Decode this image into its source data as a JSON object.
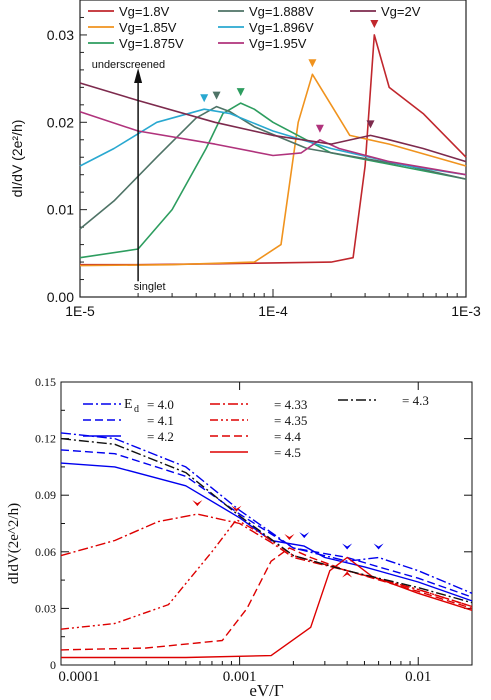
{
  "chart_data": [
    {
      "type": "line",
      "x_scale": "log",
      "xlim": [
        1e-05,
        0.001
      ],
      "ylim": [
        0,
        0.034
      ],
      "xticks": [
        "1E-5",
        "1E-4",
        "1E-3"
      ],
      "yticks": [
        "0.00",
        "0.01",
        "0.02",
        "0.03"
      ],
      "ylabel": "dI/dV (2e²/h)",
      "xlabel": "",
      "grid": false,
      "legend_position": "top",
      "annotations": {
        "underscreened": "underscreened",
        "singlet": "singlet"
      },
      "series": [
        {
          "name": "Vg=1.8V",
          "color": "#c0272d",
          "x": [
            1e-05,
            2e-05,
            5e-05,
            0.0001,
            0.0002,
            0.00026,
            0.0003,
            0.000335,
            0.0004,
            0.0006,
            0.001
          ],
          "y": [
            0.0037,
            0.0037,
            0.0038,
            0.0039,
            0.004,
            0.0045,
            0.015,
            0.03,
            0.024,
            0.021,
            0.016
          ]
        },
        {
          "name": "Vg=1.85V",
          "color": "#f0931e",
          "x": [
            1e-05,
            3e-05,
            8e-05,
            0.00011,
            0.000135,
            0.00016,
            0.0002,
            0.00025,
            0.0004,
            0.001
          ],
          "y": [
            0.0036,
            0.0037,
            0.004,
            0.006,
            0.02,
            0.0255,
            0.022,
            0.0185,
            0.0175,
            0.015
          ]
        },
        {
          "name": "Vg=1.875V",
          "color": "#2d9d5f",
          "x": [
            1e-05,
            2e-05,
            3e-05,
            4.5e-05,
            5.5e-05,
            6.8e-05,
            8e-05,
            0.0001,
            0.0002,
            0.001
          ],
          "y": [
            0.0045,
            0.0055,
            0.01,
            0.017,
            0.021,
            0.0222,
            0.0215,
            0.02,
            0.0165,
            0.0135
          ]
        },
        {
          "name": "Vg=1.888V",
          "color": "#4e7366",
          "x": [
            1e-05,
            1.5e-05,
            2.5e-05,
            4e-05,
            5.1e-05,
            6e-05,
            8e-05,
            0.00015,
            0.0005,
            0.001
          ],
          "y": [
            0.0078,
            0.011,
            0.016,
            0.0205,
            0.0218,
            0.0212,
            0.0195,
            0.017,
            0.015,
            0.0135
          ]
        },
        {
          "name": "Vg=1.896V",
          "color": "#29a8d0",
          "x": [
            1e-05,
            1.5e-05,
            2.5e-05,
            4.4e-05,
            6e-05,
            0.0001,
            0.0002,
            0.0005,
            0.001
          ],
          "y": [
            0.015,
            0.017,
            0.02,
            0.0215,
            0.021,
            0.019,
            0.017,
            0.015,
            0.014
          ]
        },
        {
          "name": "Vg=1.95V",
          "color": "#b0337c",
          "x": [
            1e-05,
            2e-05,
            5e-05,
            0.0001,
            0.00014,
            0.000175,
            0.00022,
            0.0004,
            0.001
          ],
          "y": [
            0.0212,
            0.019,
            0.0175,
            0.0162,
            0.0165,
            0.018,
            0.017,
            0.0155,
            0.014
          ]
        },
        {
          "name": "Vg=2V",
          "color": "#7d2a4d",
          "x": [
            1e-05,
            2e-05,
            5e-05,
            0.0001,
            0.0002,
            0.00032,
            0.0004,
            0.0006,
            0.001
          ],
          "y": [
            0.0245,
            0.0225,
            0.02,
            0.0185,
            0.0175,
            0.0185,
            0.018,
            0.017,
            0.0155
          ]
        }
      ],
      "markers": [
        {
          "x": 0.000335,
          "y": 0.03,
          "color": "#c0272d"
        },
        {
          "x": 0.00016,
          "y": 0.0255,
          "color": "#f0931e"
        },
        {
          "x": 6.8e-05,
          "y": 0.0222,
          "color": "#2d9d5f"
        },
        {
          "x": 5.1e-05,
          "y": 0.0218,
          "color": "#4e7366"
        },
        {
          "x": 4.4e-05,
          "y": 0.0215,
          "color": "#29a8d0"
        },
        {
          "x": 0.000175,
          "y": 0.018,
          "color": "#b0337c"
        },
        {
          "x": 0.00032,
          "y": 0.0185,
          "color": "#7d2a4d"
        }
      ]
    },
    {
      "type": "line",
      "x_scale": "log",
      "xlim": [
        0.0001,
        0.02
      ],
      "ylim": [
        0,
        0.15
      ],
      "xticks": [
        "0.0001",
        "0.001",
        "0.01"
      ],
      "yticks": [
        "0",
        "0.03",
        "0.06",
        "0.09",
        "0.12",
        "0.15"
      ],
      "xlabel": "eV/Γ",
      "ylabel": "dIdV(2e^2/h)",
      "grid": false,
      "legend_position": "top",
      "legend_prefix": "E",
      "legend_prefix_sub": "d",
      "series": [
        {
          "name": "4.0",
          "legend_label": "= 4.0",
          "color": "#0000ee",
          "dash": "10,3,2,3",
          "x": [
            0.0001,
            0.0002,
            0.0005,
            0.001,
            0.002,
            0.004,
            0.006,
            0.01,
            0.02
          ],
          "y": [
            0.123,
            0.12,
            0.105,
            0.082,
            0.062,
            0.055,
            0.057,
            0.05,
            0.038
          ]
        },
        {
          "name": "4.1",
          "legend_label": "= 4.1",
          "color": "#0000ee",
          "dash": "8,4",
          "x": [
            0.0001,
            0.0002,
            0.0005,
            0.001,
            0.002,
            0.004,
            0.006,
            0.01,
            0.02
          ],
          "y": [
            0.114,
            0.112,
            0.1,
            0.08,
            0.062,
            0.057,
            0.052,
            0.046,
            0.036
          ]
        },
        {
          "name": "4.2",
          "legend_label": "= 4.2",
          "color": "#0000ee",
          "dash": "",
          "x": [
            0.0001,
            0.0002,
            0.0005,
            0.001,
            0.0015,
            0.0023,
            0.003,
            0.005,
            0.01,
            0.02
          ],
          "y": [
            0.107,
            0.105,
            0.095,
            0.078,
            0.066,
            0.063,
            0.057,
            0.052,
            0.044,
            0.034
          ]
        },
        {
          "name": "4.33",
          "legend_label": "= 4.33",
          "color": "#dd0000",
          "dash": "10,3,2,3",
          "x": [
            0.0001,
            0.0002,
            0.00035,
            0.00058,
            0.001,
            0.0015,
            0.002,
            0.004,
            0.01,
            0.02
          ],
          "y": [
            0.058,
            0.066,
            0.076,
            0.08,
            0.075,
            0.065,
            0.057,
            0.05,
            0.04,
            0.031
          ]
        },
        {
          "name": "4.35",
          "legend_label": "= 4.35",
          "color": "#dd0000",
          "dash": "8,3,2,3,2,3",
          "x": [
            0.0001,
            0.0002,
            0.0004,
            0.0007,
            0.00096,
            0.0013,
            0.002,
            0.004,
            0.01,
            0.02
          ],
          "y": [
            0.019,
            0.022,
            0.032,
            0.06,
            0.077,
            0.07,
            0.058,
            0.05,
            0.04,
            0.031
          ]
        },
        {
          "name": "4.4",
          "legend_label": "= 4.4",
          "color": "#dd0000",
          "dash": "8,4",
          "x": [
            0.0001,
            0.0003,
            0.0008,
            0.0011,
            0.0015,
            0.0019,
            0.0025,
            0.004,
            0.01,
            0.02
          ],
          "y": [
            0.008,
            0.009,
            0.013,
            0.03,
            0.055,
            0.062,
            0.057,
            0.05,
            0.039,
            0.03
          ]
        },
        {
          "name": "4.5",
          "legend_label": "= 4.5",
          "color": "#dd0000",
          "dash": "",
          "x": [
            0.0001,
            0.0005,
            0.0015,
            0.0025,
            0.0032,
            0.004,
            0.0055,
            0.01,
            0.02
          ],
          "y": [
            0.004,
            0.004,
            0.005,
            0.02,
            0.05,
            0.057,
            0.047,
            0.038,
            0.029
          ]
        },
        {
          "name": "4.3",
          "legend_label": "= 4.3",
          "color": "#111111",
          "dash": "10,3,2,3",
          "x": [
            0.0001,
            0.0002,
            0.0005,
            0.001,
            0.002,
            0.004,
            0.01,
            0.02
          ],
          "y": [
            0.12,
            0.117,
            0.102,
            0.079,
            0.058,
            0.05,
            0.041,
            0.033
          ]
        }
      ],
      "markers": [
        {
          "x": 0.00058,
          "y": 0.08,
          "color": "#dd0000",
          "dir": "down"
        },
        {
          "x": 0.00096,
          "y": 0.077,
          "color": "#dd0000",
          "dir": "down"
        },
        {
          "x": 0.0019,
          "y": 0.062,
          "color": "#dd0000",
          "dir": "down"
        },
        {
          "x": 0.0023,
          "y": 0.063,
          "color": "#0000ee",
          "dir": "down"
        },
        {
          "x": 0.004,
          "y": 0.057,
          "color": "#0000ee",
          "dir": "down"
        },
        {
          "x": 0.006,
          "y": 0.057,
          "color": "#0000ee",
          "dir": "down"
        },
        {
          "x": 0.004,
          "y": 0.057,
          "color": "#dd0000",
          "dir": "up"
        }
      ]
    }
  ]
}
